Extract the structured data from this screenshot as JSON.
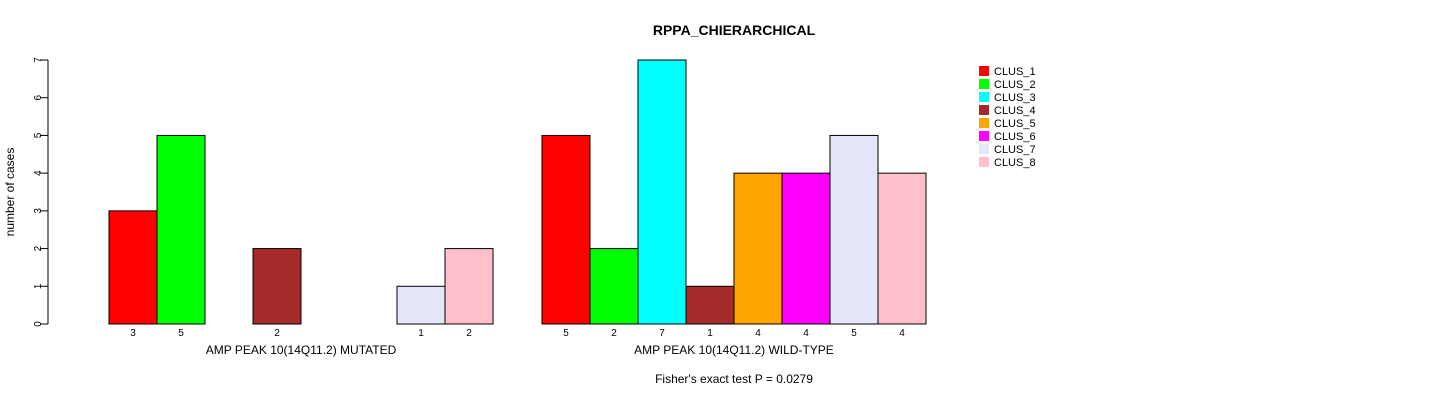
{
  "chart_data": {
    "type": "bar",
    "title": "RPPA_CHIERARCHICAL",
    "ylabel": "number of cases",
    "ylim": [
      0,
      7
    ],
    "yticks": [
      0,
      1,
      2,
      3,
      4,
      5,
      6,
      7
    ],
    "footer": "Fisher's exact test P = 0.0279",
    "legend_position": "top-right",
    "legend": [
      {
        "name": "CLUS_1",
        "color": "#FF0000"
      },
      {
        "name": "CLUS_2",
        "color": "#00FF00"
      },
      {
        "name": "CLUS_3",
        "color": "#00FFFF"
      },
      {
        "name": "CLUS_4",
        "color": "#A52A2A"
      },
      {
        "name": "CLUS_5",
        "color": "#FFA500"
      },
      {
        "name": "CLUS_6",
        "color": "#FF00FF"
      },
      {
        "name": "CLUS_7",
        "color": "#E6E6FA"
      },
      {
        "name": "CLUS_8",
        "color": "#FFC0CB"
      }
    ],
    "groups": [
      {
        "label": "AMP PEAK 10(14Q11.2) MUTATED",
        "values": [
          3,
          5,
          0,
          2,
          0,
          0,
          1,
          2
        ],
        "count_labels": [
          "3",
          "5",
          "",
          "2",
          "",
          "",
          "1",
          "2"
        ]
      },
      {
        "label": "AMP PEAK 10(14Q11.2) WILD-TYPE",
        "values": [
          5,
          2,
          7,
          1,
          4,
          4,
          5,
          4
        ],
        "count_labels": [
          "5",
          "2",
          "7",
          "1",
          "4",
          "4",
          "5",
          "4"
        ]
      }
    ]
  }
}
